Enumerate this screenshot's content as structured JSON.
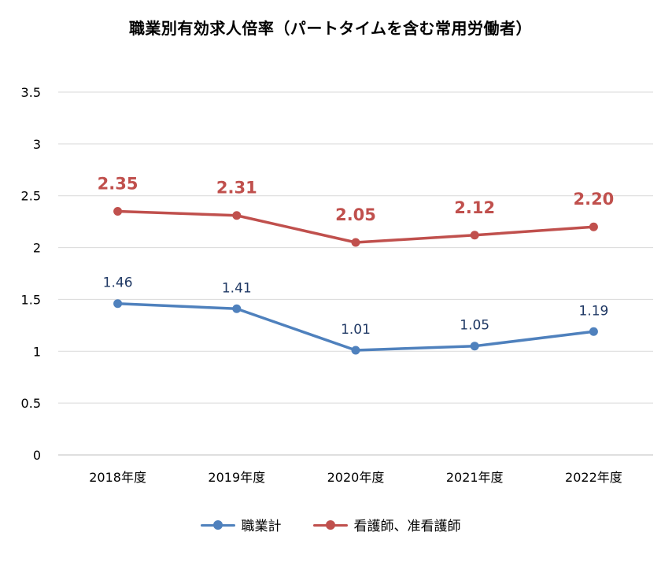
{
  "chart_data": {
    "type": "line",
    "title": "職業別有効求人倍率（パートタイムを含む常用労働者）",
    "categories": [
      "2018年度",
      "2019年度",
      "2020年度",
      "2021年度",
      "2022年度"
    ],
    "y_ticks": [
      "0",
      "0.5",
      "1",
      "1.5",
      "2",
      "2.5",
      "3",
      "3.5"
    ],
    "ylim": [
      0,
      3.5
    ],
    "grid": "horizontal",
    "legend_position": "bottom",
    "series": [
      {
        "name": "職業計",
        "color": "#4F81BD",
        "values": [
          1.46,
          1.41,
          1.01,
          1.05,
          1.19
        ],
        "labels": [
          "1.46",
          "1.41",
          "1.01",
          "1.05",
          "1.19"
        ]
      },
      {
        "name": "看護師、准看護師",
        "color": "#C0504D",
        "values": [
          2.35,
          2.31,
          2.05,
          2.12,
          2.2
        ],
        "labels": [
          "2.35",
          "2.31",
          "2.05",
          "2.12",
          "2.20"
        ]
      }
    ]
  }
}
